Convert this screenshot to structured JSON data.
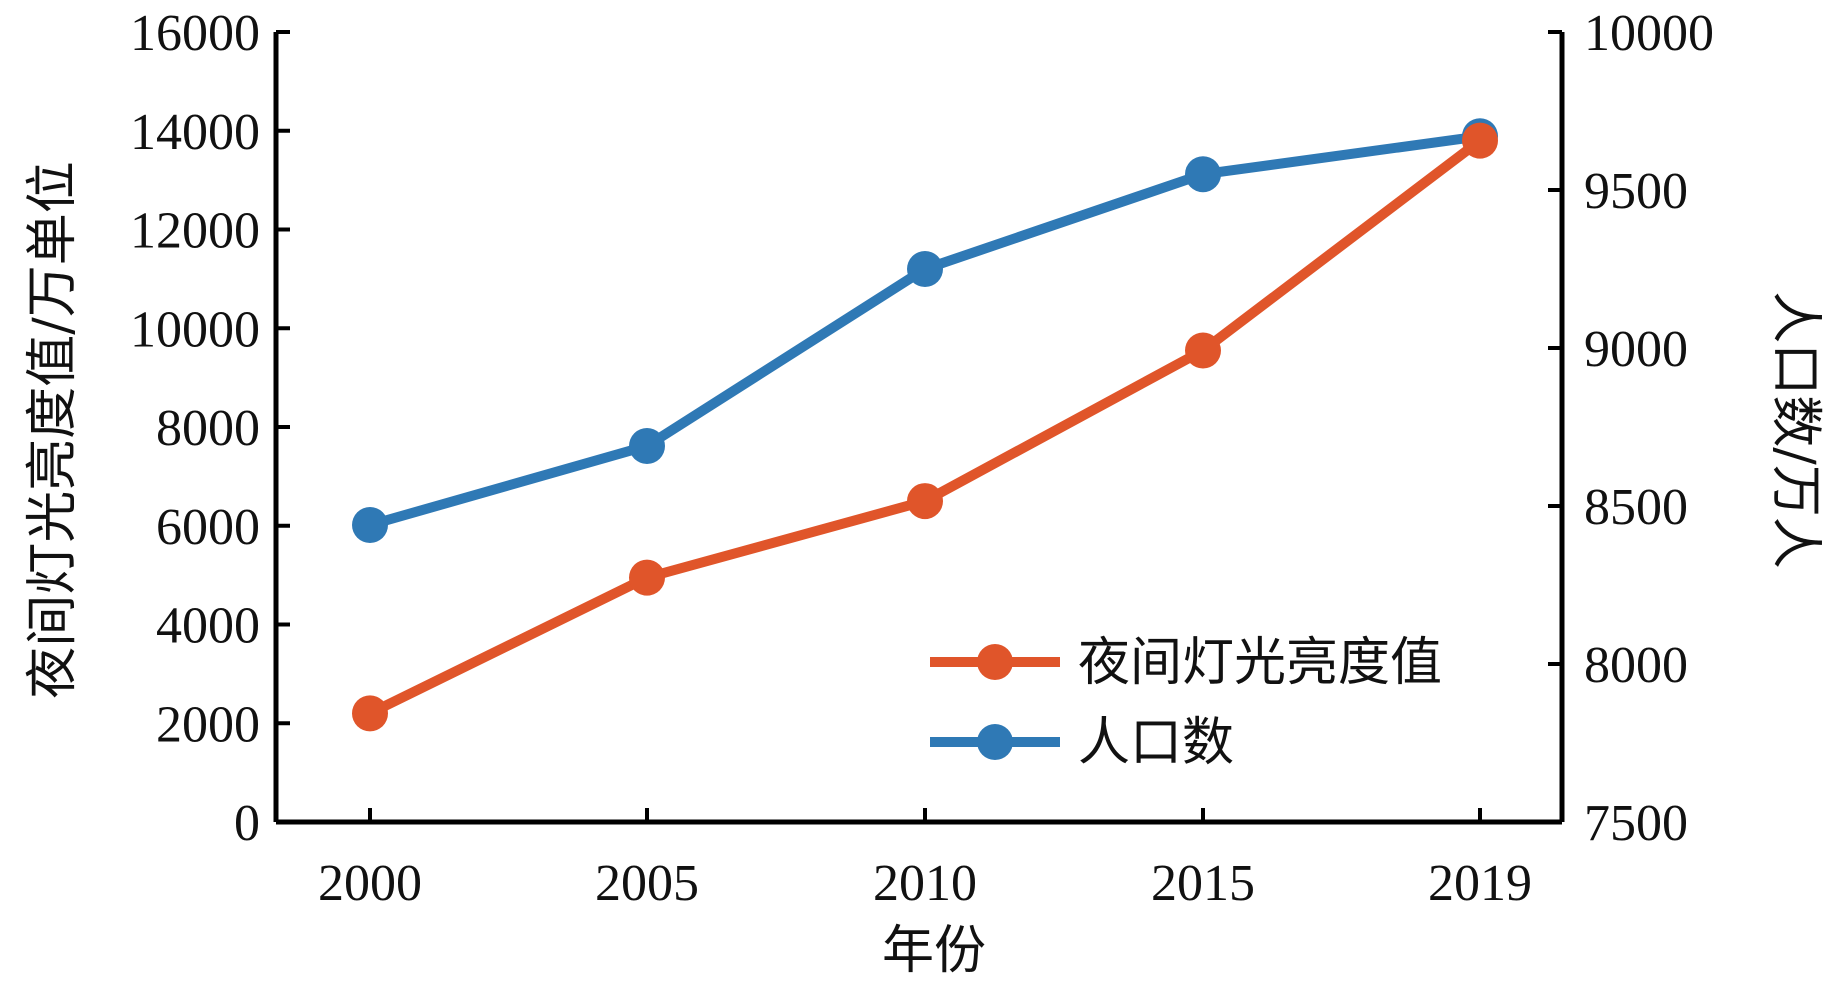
{
  "chart_data": {
    "type": "line",
    "title": "",
    "x": [
      "2000",
      "2005",
      "2010",
      "2015",
      "2019"
    ],
    "xlabel": "年份",
    "ylabel_left": "夜间灯光亮度值/万单位",
    "ylabel_right": "人口数/万人",
    "ylim_left": [
      0,
      16000
    ],
    "ylim_right": [
      7500,
      10000
    ],
    "yticks_left": [
      "0",
      "2000",
      "4000",
      "6000",
      "8000",
      "10000",
      "12000",
      "14000",
      "16000"
    ],
    "yticks_right": [
      "7500",
      "8000",
      "8500",
      "9000",
      "9500",
      "10000"
    ],
    "grid": false,
    "legend_position": "bottom-right",
    "series": [
      {
        "name": "夜间灯光亮度值",
        "axis": "left",
        "color": "#e0552a",
        "values": [
          2200,
          4950,
          6500,
          9550,
          13800
        ]
      },
      {
        "name": "人口数",
        "axis": "right",
        "color": "#2f79b5",
        "values": [
          8440,
          8690,
          9250,
          9550,
          9670
        ]
      }
    ]
  }
}
